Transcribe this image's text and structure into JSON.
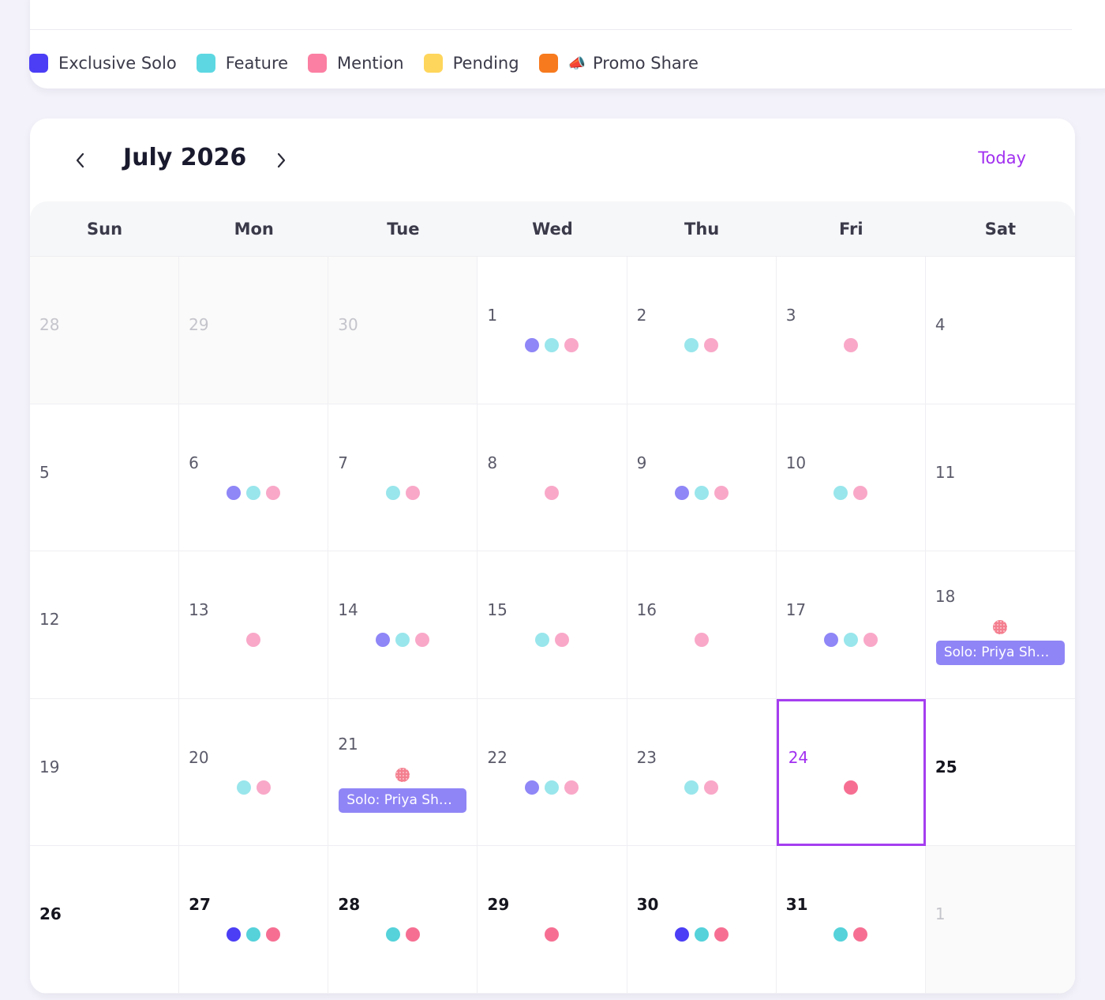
{
  "legend": {
    "items": [
      {
        "label": "Exclusive Solo",
        "color": "#4b3ef5",
        "emoji": ""
      },
      {
        "label": "Feature",
        "color": "#5dd8e2",
        "emoji": ""
      },
      {
        "label": "Mention",
        "color": "#fb7fa2",
        "emoji": ""
      },
      {
        "label": "Pending",
        "color": "#ffd65c",
        "emoji": ""
      },
      {
        "label": "Promo Share",
        "color": "#f77a1e",
        "emoji": "📣"
      }
    ]
  },
  "calendar": {
    "month_title": "July 2026",
    "today_label": "Today",
    "weekdays": [
      "Sun",
      "Mon",
      "Tue",
      "Wed",
      "Thu",
      "Fri",
      "Sat"
    ],
    "colors": {
      "solo_light": "#8f86f7",
      "feature_light": "#99e6ec",
      "mention_light": "#f9a8c8",
      "solo_strong": "#4b3ef5",
      "feature_strong": "#55d2da",
      "mention_strong": "#f66f93",
      "pending_mention": "#f47f8f",
      "today_accent": "#a53ef0"
    },
    "days": [
      {
        "num": "28",
        "outside": true,
        "dots": []
      },
      {
        "num": "29",
        "outside": true,
        "dots": []
      },
      {
        "num": "30",
        "outside": true,
        "dots": []
      },
      {
        "num": "1",
        "dots": [
          "solo_light",
          "feature_light",
          "mention_light"
        ]
      },
      {
        "num": "2",
        "dots": [
          "feature_light",
          "mention_light"
        ]
      },
      {
        "num": "3",
        "dots": [
          "mention_light"
        ]
      },
      {
        "num": "4",
        "dots": []
      },
      {
        "num": "5",
        "dots": []
      },
      {
        "num": "6",
        "dots": [
          "solo_light",
          "feature_light",
          "mention_light"
        ]
      },
      {
        "num": "7",
        "dots": [
          "feature_light",
          "mention_light"
        ]
      },
      {
        "num": "8",
        "dots": [
          "mention_light"
        ]
      },
      {
        "num": "9",
        "dots": [
          "solo_light",
          "feature_light",
          "mention_light"
        ]
      },
      {
        "num": "10",
        "dots": [
          "feature_light",
          "mention_light"
        ]
      },
      {
        "num": "11",
        "dots": []
      },
      {
        "num": "12",
        "dots": []
      },
      {
        "num": "13",
        "dots": [
          "mention_light"
        ]
      },
      {
        "num": "14",
        "dots": [
          "solo_light",
          "feature_light",
          "mention_light"
        ]
      },
      {
        "num": "15",
        "dots": [
          "feature_light",
          "mention_light"
        ]
      },
      {
        "num": "16",
        "dots": [
          "mention_light"
        ]
      },
      {
        "num": "17",
        "dots": [
          "solo_light",
          "feature_light",
          "mention_light"
        ]
      },
      {
        "num": "18",
        "dots": [
          "pending_mention"
        ],
        "event": "Solo: Priya Shar..."
      },
      {
        "num": "19",
        "dots": []
      },
      {
        "num": "20",
        "dots": [
          "feature_light",
          "mention_light"
        ]
      },
      {
        "num": "21",
        "dots": [
          "pending_mention"
        ],
        "event": "Solo: Priya Shar..."
      },
      {
        "num": "22",
        "dots": [
          "solo_light",
          "feature_light",
          "mention_light"
        ]
      },
      {
        "num": "23",
        "dots": [
          "feature_light",
          "mention_light"
        ]
      },
      {
        "num": "24",
        "today": true,
        "dots": [
          "mention_strong"
        ]
      },
      {
        "num": "25",
        "bold": true,
        "dots": []
      },
      {
        "num": "26",
        "bold": true,
        "dots": []
      },
      {
        "num": "27",
        "bold": true,
        "dots": [
          "solo_strong",
          "feature_strong",
          "mention_strong"
        ]
      },
      {
        "num": "28",
        "bold": true,
        "dots": [
          "feature_strong",
          "mention_strong"
        ]
      },
      {
        "num": "29",
        "bold": true,
        "dots": [
          "mention_strong"
        ]
      },
      {
        "num": "30",
        "bold": true,
        "dots": [
          "solo_strong",
          "feature_strong",
          "mention_strong"
        ]
      },
      {
        "num": "31",
        "bold": true,
        "dots": [
          "feature_strong",
          "mention_strong"
        ]
      },
      {
        "num": "1",
        "outside": true,
        "dots": []
      }
    ]
  }
}
